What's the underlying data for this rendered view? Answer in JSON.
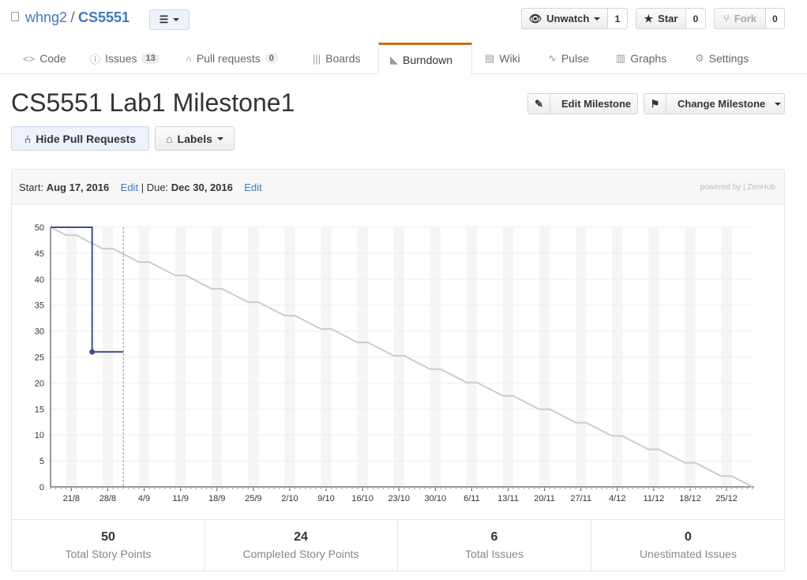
{
  "repo": {
    "owner": "whng2",
    "separator": "/",
    "name": "CS5551"
  },
  "header_buttons": {
    "unwatch": {
      "label": "Unwatch",
      "count": "1"
    },
    "star": {
      "label": "Star",
      "count": "0"
    },
    "fork": {
      "label": "Fork",
      "count": "0"
    }
  },
  "tabs": [
    {
      "label": "Code",
      "icon": "code-icon"
    },
    {
      "label": "Issues",
      "icon": "issue-icon",
      "count": "13"
    },
    {
      "label": "Pull requests",
      "icon": "pull-request-icon",
      "count": "0"
    },
    {
      "label": "Boards",
      "icon": "boards-icon"
    },
    {
      "label": "Burndown",
      "icon": "burndown-icon",
      "selected": true
    },
    {
      "label": "Wiki",
      "icon": "wiki-icon"
    },
    {
      "label": "Pulse",
      "icon": "pulse-icon"
    },
    {
      "label": "Graphs",
      "icon": "graphs-icon"
    },
    {
      "label": "Settings",
      "icon": "gear-icon"
    }
  ],
  "milestone": {
    "title": "CS5551 Lab1 Milestone1",
    "edit_label": "Edit Milestone",
    "change_label": "Change Milestone",
    "hide_pr_label": "Hide Pull Requests",
    "labels_label": "Labels",
    "start_label": "Start:",
    "start_date": "Aug 17, 2016",
    "edit_link": "Edit",
    "divider": "|",
    "due_label": "Due:",
    "due_date": "Dec 30, 2016",
    "powered_by": "powered by | ZenHub"
  },
  "stats": [
    {
      "value": "50",
      "label": "Total Story Points"
    },
    {
      "value": "24",
      "label": "Completed Story Points"
    },
    {
      "value": "6",
      "label": "Total Issues"
    },
    {
      "value": "0",
      "label": "Unestimated Issues"
    }
  ],
  "chart_data": {
    "type": "line",
    "x_start": "2016-08-17",
    "x_end": "2016-12-30",
    "ylim": [
      0,
      50
    ],
    "yticks": [
      0,
      5,
      10,
      15,
      20,
      25,
      30,
      35,
      40,
      45,
      50
    ],
    "xtick_labels": [
      "21/8",
      "28/8",
      "4/9",
      "11/9",
      "18/9",
      "25/9",
      "2/10",
      "9/10",
      "16/10",
      "23/10",
      "30/10",
      "6/11",
      "13/11",
      "20/11",
      "27/11",
      "4/12",
      "11/12",
      "18/12",
      "25/12"
    ],
    "series": [
      {
        "role": "ideal",
        "color": "#cccccc",
        "points": [
          [
            "2016-08-17",
            50
          ],
          [
            "2016-12-30",
            0
          ]
        ]
      },
      {
        "role": "actual",
        "color": "#3f4e8e",
        "points": [
          [
            "2016-08-17",
            50
          ],
          [
            "2016-08-25",
            50
          ],
          [
            "2016-08-25",
            26
          ],
          [
            "2016-08-31",
            26
          ]
        ]
      }
    ],
    "today": "2016-08-31",
    "today_color": "#8888dd"
  }
}
